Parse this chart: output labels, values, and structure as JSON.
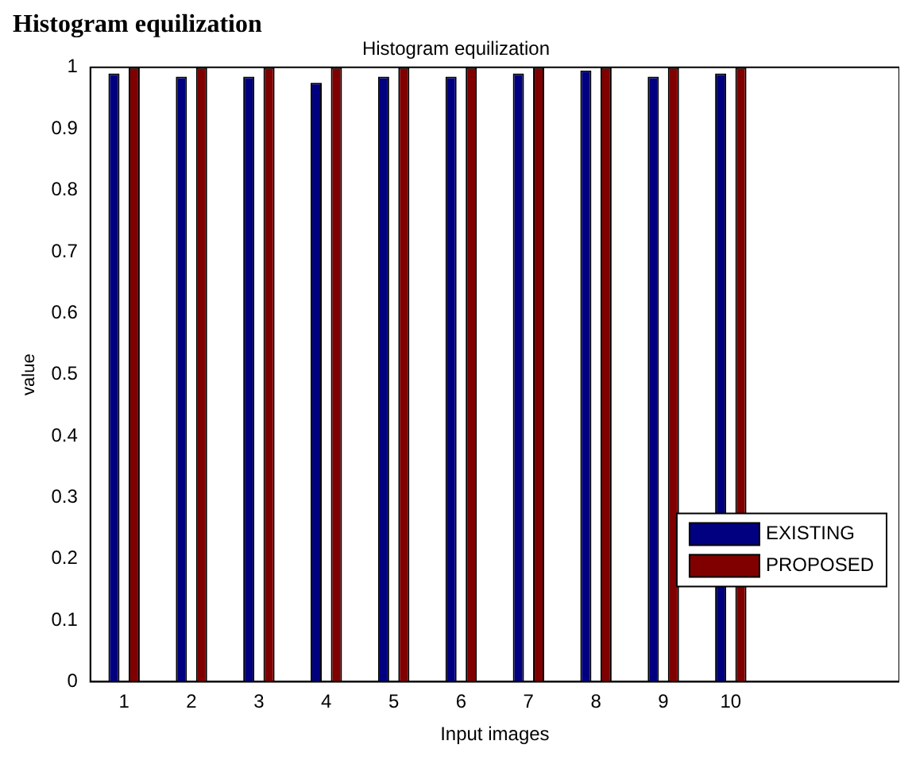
{
  "chart_data": {
    "type": "bar",
    "title": "Histogram equilization",
    "xlabel": "Input images",
    "ylabel": "value",
    "annotations": [
      "Histogram equilization"
    ],
    "categories": [
      "1",
      "2",
      "3",
      "4",
      "5",
      "6",
      "7",
      "8",
      "9",
      "10",
      null,
      null
    ],
    "series": [
      {
        "name": "EXISTING",
        "color": "#000080",
        "values": [
          0.99,
          0.985,
          0.985,
          0.975,
          0.985,
          0.985,
          0.99,
          0.995,
          0.985,
          0.99,
          null,
          null
        ]
      },
      {
        "name": "PROPOSED",
        "color": "#800000",
        "values": [
          1,
          1,
          1,
          1,
          1,
          1,
          1,
          1,
          1,
          1,
          null,
          null
        ]
      }
    ],
    "ylim": [
      0,
      1
    ],
    "yticks": [
      0,
      0.1,
      0.2,
      0.3,
      0.4,
      0.5,
      0.6,
      0.7,
      0.8,
      0.9,
      1
    ],
    "grid": false,
    "legend": "bottom right"
  }
}
